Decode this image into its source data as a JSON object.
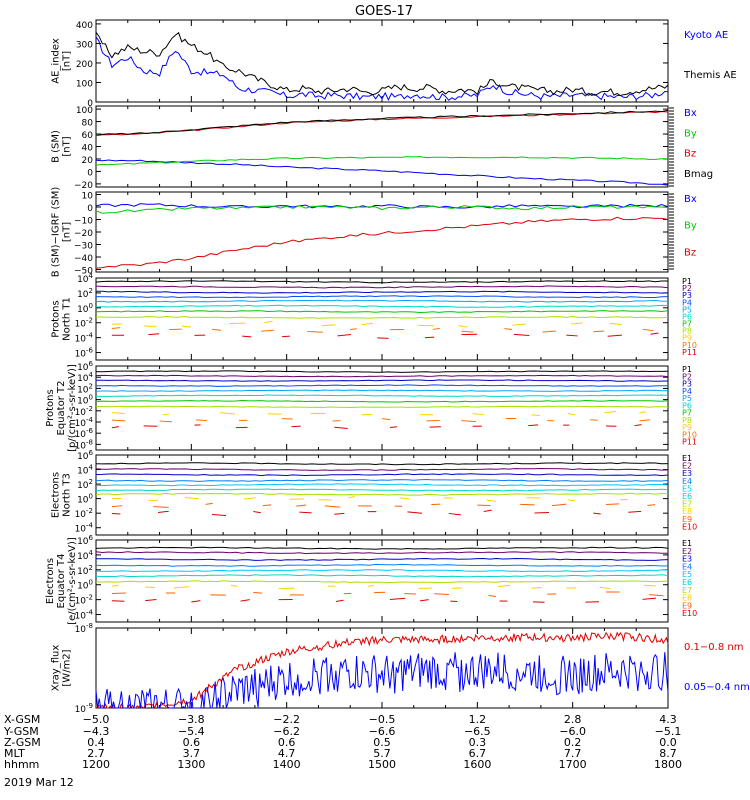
{
  "title": "GOES-17",
  "date_label": "2019 Mar 12",
  "colors": {
    "black": "#000000",
    "blue": "#0000ff",
    "red": "#dd0000",
    "green": "#00cc00",
    "P": [
      "#000000",
      "#6a006a",
      "#0000c8",
      "#0050ff",
      "#00a8ff",
      "#00d8c8",
      "#00c800",
      "#a8e000",
      "#ffd000",
      "#ff7000",
      "#e00000"
    ],
    "E": [
      "#000000",
      "#6a006a",
      "#0000c8",
      "#0080ff",
      "#00c8ff",
      "#00d8c8",
      "#a8e000",
      "#ffd000",
      "#ff6000",
      "#e00000"
    ]
  },
  "chart_data": [
    {
      "type": "line",
      "ylabel": "AE_index [nT]",
      "yticks": [
        "400",
        "300",
        "200",
        "100",
        "0"
      ],
      "ylim": [
        0,
        420
      ],
      "legend": [
        "Kyoto AE",
        "Themis AE"
      ],
      "legend_colors": [
        "#0000ff",
        "#000000"
      ],
      "x": [
        1200,
        1210,
        1220,
        1230,
        1240,
        1250,
        1300,
        1310,
        1320,
        1330,
        1340,
        1350,
        1400,
        1410,
        1420,
        1430,
        1440,
        1450,
        1500,
        1510,
        1520,
        1530,
        1540,
        1550,
        1600,
        1610,
        1620,
        1630,
        1640,
        1650,
        1700,
        1710,
        1720,
        1730,
        1740,
        1750,
        1800
      ],
      "series": [
        {
          "name": "Kyoto AE",
          "color": "#0000ff",
          "values": [
            320,
            190,
            230,
            160,
            150,
            270,
            160,
            150,
            140,
            70,
            60,
            50,
            30,
            40,
            30,
            35,
            30,
            25,
            30,
            25,
            40,
            30,
            25,
            30,
            35,
            90,
            50,
            40,
            30,
            30,
            35,
            30,
            30,
            25,
            30,
            35,
            60
          ]
        },
        {
          "name": "Themis AE",
          "color": "#000000",
          "values": [
            340,
            240,
            280,
            260,
            250,
            350,
            290,
            250,
            180,
            160,
            120,
            90,
            60,
            70,
            55,
            60,
            70,
            50,
            60,
            80,
            70,
            75,
            55,
            65,
            55,
            110,
            80,
            70,
            60,
            55,
            65,
            50,
            55,
            50,
            60,
            70,
            80
          ]
        }
      ]
    },
    {
      "type": "line",
      "ylabel": "B (SM) [nT]",
      "yticks": [
        "100",
        "80",
        "60",
        "40",
        "20",
        "0",
        "−20"
      ],
      "ylim": [
        -25,
        105
      ],
      "legend": [
        "Bx",
        "By",
        "Bz",
        "Bmag"
      ],
      "legend_colors": [
        "#0000ff",
        "#00cc00",
        "#dd0000",
        "#000000"
      ],
      "x": [
        1200,
        1230,
        1300,
        1330,
        1400,
        1430,
        1500,
        1530,
        1600,
        1630,
        1700,
        1730,
        1800
      ],
      "series": [
        {
          "name": "Bx",
          "color": "#0000ff",
          "values": [
            18,
            17,
            14,
            11,
            7,
            4,
            1,
            -3,
            -7,
            -11,
            -14,
            -17,
            -21
          ]
        },
        {
          "name": "By",
          "color": "#00cc00",
          "values": [
            10,
            13,
            16,
            19,
            21,
            22,
            22,
            23,
            23,
            23,
            22,
            21,
            20
          ]
        },
        {
          "name": "Bz",
          "color": "#dd0000",
          "values": [
            58,
            60,
            66,
            72,
            78,
            81,
            84,
            86,
            88,
            90,
            92,
            94,
            96
          ]
        },
        {
          "name": "Bmag",
          "color": "#000000",
          "values": [
            59,
            61,
            67,
            73,
            79,
            82,
            85,
            87,
            89,
            91,
            93,
            95,
            97
          ]
        }
      ]
    },
    {
      "type": "line",
      "ylabel": "B (SM)−IGRF (SM) [nT]",
      "yticks": [
        "10",
        "0",
        "−10",
        "−20",
        "−30",
        "−40",
        "−50"
      ],
      "ylim": [
        -52,
        12
      ],
      "legend": [
        "Bx",
        "By",
        "Bz"
      ],
      "legend_colors": [
        "#0000ff",
        "#00cc00",
        "#dd0000"
      ],
      "x": [
        1200,
        1230,
        1300,
        1330,
        1400,
        1430,
        1500,
        1530,
        1600,
        1630,
        1700,
        1730,
        1800
      ],
      "series": [
        {
          "name": "Bx",
          "color": "#0000ff",
          "values": [
            1,
            2,
            1,
            0,
            1,
            0,
            1,
            0,
            0,
            1,
            0,
            1,
            1
          ]
        },
        {
          "name": "By",
          "color": "#00cc00",
          "values": [
            -4,
            -3,
            -1,
            -1,
            0,
            0,
            -1,
            0,
            0,
            -1,
            0,
            0,
            -1
          ]
        },
        {
          "name": "Bz",
          "color": "#dd0000",
          "values": [
            -48,
            -46,
            -41,
            -34,
            -28,
            -24,
            -21,
            -18,
            -15,
            -12,
            -10,
            -9,
            -9
          ]
        }
      ]
    },
    {
      "type": "line",
      "log": true,
      "ylabel": "Protons North T1",
      "yticks": [
        "10^4",
        "10^2",
        "10^0",
        "10^-2",
        "10^-4",
        "10^-6"
      ],
      "ylim_exp": [
        -7,
        4
      ],
      "legend": [
        "P1",
        "P2",
        "P3",
        "P4",
        "P5",
        "P6",
        "P7",
        "P8",
        "P9",
        "P10",
        "P11"
      ],
      "log_levels": [
        3.5,
        2.8,
        2.1,
        1.5,
        0.9,
        0.2,
        -0.5,
        -1.3,
        -2.2,
        -3.0,
        -3.8
      ]
    },
    {
      "type": "line",
      "log": true,
      "ylabel": "Protons Equator T2 [p/(cm²-s-sr-keV)]",
      "yticks": [
        "10^6",
        "10^4",
        "10^2",
        "10^0",
        "10^-2",
        "10^-4",
        "10^-6",
        "10^-8"
      ],
      "ylim_exp": [
        -9,
        6
      ],
      "legend": [
        "P1",
        "P2",
        "P3",
        "P4",
        "P5",
        "P6",
        "P7",
        "P8",
        "P9",
        "P10",
        "P11"
      ],
      "log_levels": [
        5.0,
        4.2,
        3.4,
        2.5,
        1.6,
        0.7,
        -0.3,
        -1.3,
        -2.5,
        -3.6,
        -4.8
      ]
    },
    {
      "type": "line",
      "log": true,
      "ylabel": "Electrons North T3",
      "yticks": [
        "10^6",
        "10^4",
        "10^2",
        "10^0",
        "10^-2",
        "10^-4"
      ],
      "ylim_exp": [
        -5,
        6
      ],
      "legend": [
        "E1",
        "E2",
        "E3",
        "E4",
        "E5",
        "E6",
        "E7",
        "E8",
        "E9",
        "E10"
      ],
      "log_levels": [
        4.8,
        4.0,
        3.3,
        2.5,
        1.9,
        1.2,
        0.6,
        -0.1,
        -1.0,
        -2.0
      ]
    },
    {
      "type": "line",
      "log": true,
      "ylabel": "Electrons Equator T4 [e/(cm²-s-sr-keV)]",
      "yticks": [
        "10^6",
        "10^4",
        "10^2",
        "10^0",
        "10^-2",
        "10^-4"
      ],
      "ylim_exp": [
        -5,
        6
      ],
      "legend": [
        "E1",
        "E2",
        "E3",
        "E4",
        "E5",
        "E6",
        "E7",
        "E8",
        "E9",
        "E10"
      ],
      "log_levels": [
        4.9,
        4.3,
        3.4,
        2.6,
        1.9,
        1.2,
        0.4,
        -0.3,
        -1.2,
        -2.1
      ]
    },
    {
      "type": "line",
      "log": true,
      "ylabel": "Xray_flux [W/m2]",
      "yticks": [
        "10^-8",
        "10^-9"
      ],
      "ylim_exp": [
        -9,
        -8
      ],
      "legend": [
        "0.1−0.8 nm",
        "0.05−0.4 nm"
      ],
      "legend_colors": [
        "#dd0000",
        "#0000ff"
      ],
      "series": [
        {
          "name": "0.1−0.8 nm",
          "color": "#dd0000",
          "x": [
            1200,
            1230,
            1300,
            1330,
            1400,
            1430,
            1500,
            1530,
            1600,
            1630,
            1700,
            1730,
            1800
          ],
          "values": [
            -9.0,
            -9.0,
            -8.9,
            -8.5,
            -8.3,
            -8.2,
            -8.15,
            -8.15,
            -8.12,
            -8.12,
            -8.12,
            -8.1,
            -8.15
          ]
        },
        {
          "name": "0.05−0.4 nm",
          "color": "#0000ff",
          "x": [
            1200,
            1230,
            1300,
            1330,
            1400,
            1430,
            1500,
            1530,
            1600,
            1630,
            1700,
            1730,
            1800
          ],
          "values": [
            -9.0,
            -9.0,
            -9.0,
            -8.8,
            -8.65,
            -8.55,
            -8.6,
            -8.55,
            -8.55,
            -8.55,
            -8.6,
            -8.55,
            -8.55
          ]
        }
      ]
    }
  ],
  "xaxis": {
    "row_labels": [
      "X-GSM",
      "Y-GSM",
      "Z-GSM",
      "MLT",
      "hhmm"
    ],
    "columns": [
      {
        "t": 1200,
        "vals": [
          "−5.0",
          "−4.3",
          "0.4",
          "2.7",
          "1200"
        ]
      },
      {
        "t": 1300,
        "vals": [
          "−3.8",
          "−5.4",
          "0.6",
          "3.7",
          "1300"
        ]
      },
      {
        "t": 1400,
        "vals": [
          "−2.2",
          "−6.2",
          "0.6",
          "4.7",
          "1400"
        ]
      },
      {
        "t": 1500,
        "vals": [
          "−0.5",
          "−6.6",
          "0.5",
          "5.7",
          "1500"
        ]
      },
      {
        "t": 1600,
        "vals": [
          "1.2",
          "−6.5",
          "0.3",
          "6.7",
          "1600"
        ]
      },
      {
        "t": 1700,
        "vals": [
          "2.8",
          "−6.0",
          "0.2",
          "7.7",
          "1700"
        ]
      },
      {
        "t": 1800,
        "vals": [
          "4.3",
          "−5.1",
          "0.0",
          "8.7",
          "1800"
        ]
      }
    ]
  }
}
